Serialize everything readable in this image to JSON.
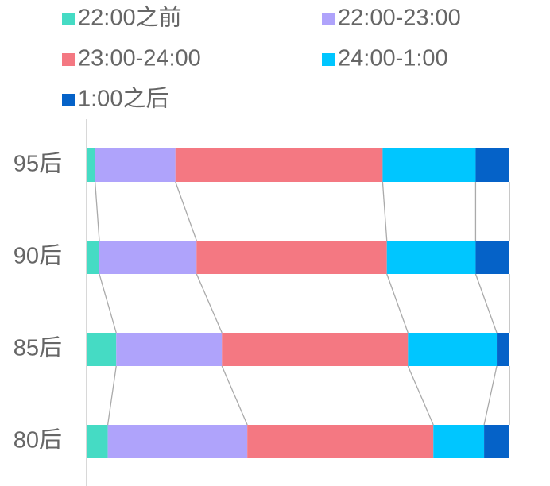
{
  "chart_data": {
    "type": "stacked_bar_horizontal",
    "categories": [
      "95后",
      "90后",
      "85后",
      "80后"
    ],
    "series": [
      {
        "name": "22:00之前",
        "color": "#45dbc4",
        "values": [
          2,
          3,
          7,
          5
        ]
      },
      {
        "name": "22:00-23:00",
        "color": "#afa3fb",
        "values": [
          19,
          23,
          25,
          33
        ]
      },
      {
        "name": "23:00-24:00",
        "color": "#f47882",
        "values": [
          49,
          45,
          44,
          44
        ]
      },
      {
        "name": "24:00-1:00",
        "color": "#00c6ff",
        "values": [
          22,
          21,
          21,
          12
        ]
      },
      {
        "name": "1:00之后",
        "color": "#0562c8",
        "values": [
          8,
          8,
          3,
          6
        ]
      }
    ],
    "xlim": [
      0,
      100
    ]
  }
}
